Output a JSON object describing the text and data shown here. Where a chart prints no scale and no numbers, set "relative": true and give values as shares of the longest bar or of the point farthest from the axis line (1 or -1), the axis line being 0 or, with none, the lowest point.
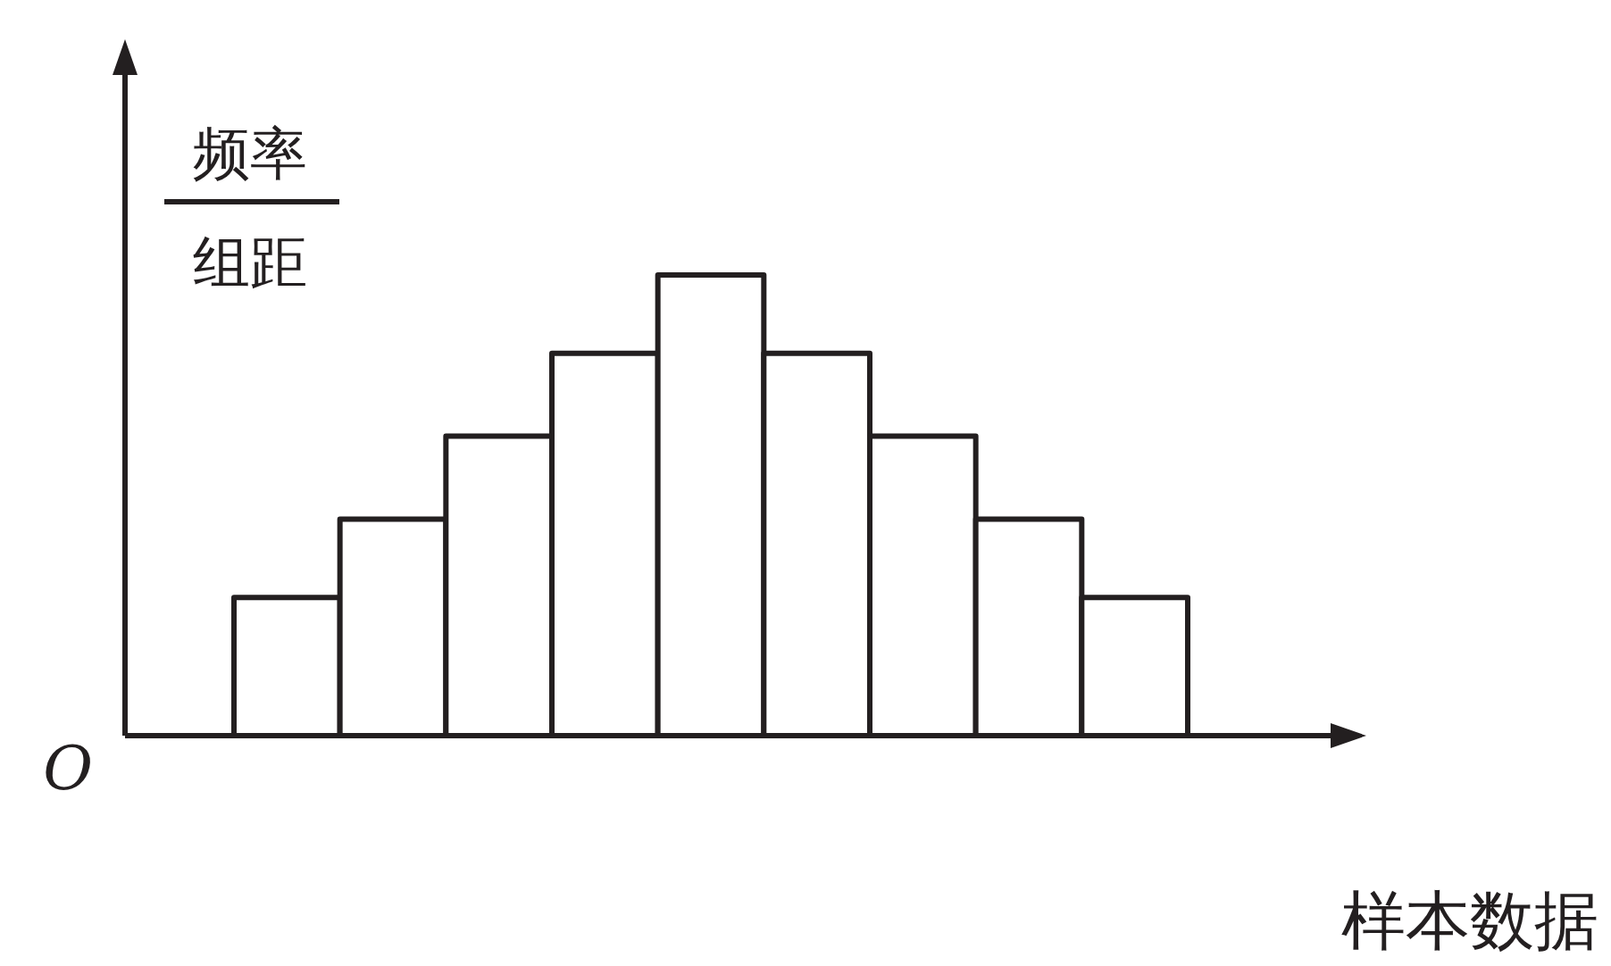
{
  "chart_data": {
    "type": "bar",
    "relative": true,
    "xlabel": "样本数据",
    "ylabel": "频率组距",
    "annotations": [
      "O"
    ],
    "categories": [
      null,
      null,
      null,
      null,
      null,
      null,
      null,
      null,
      null
    ],
    "values": [
      0.3,
      0.47,
      0.65,
      0.83,
      1,
      0.83,
      0.65,
      0.47,
      0.3
    ],
    "color": "#ffffff"
  }
}
